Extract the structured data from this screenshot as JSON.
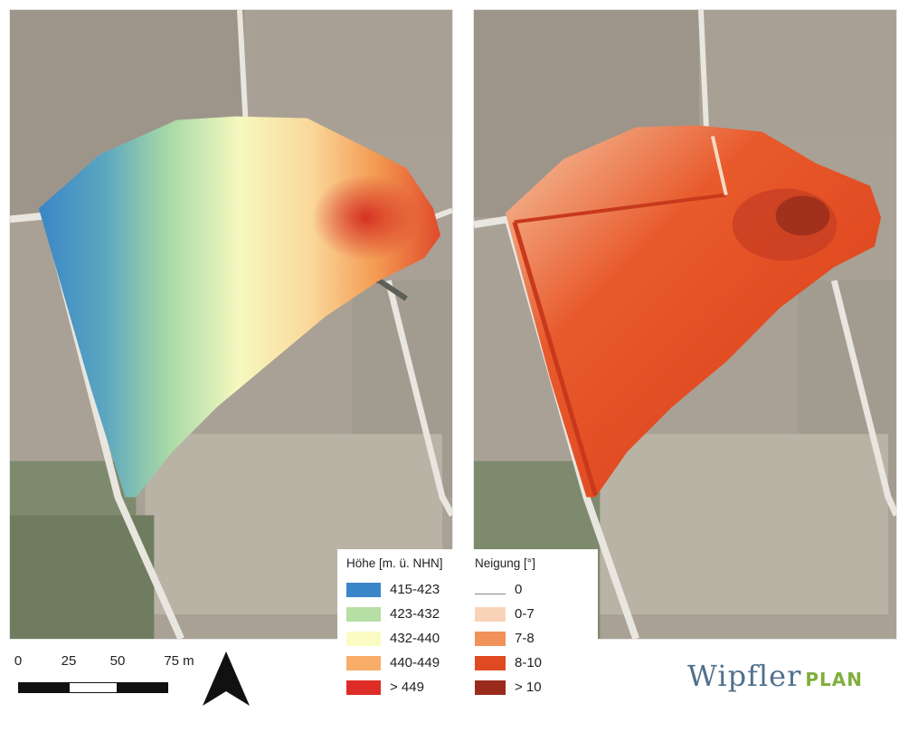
{
  "maps": {
    "left": {
      "layer": "height"
    },
    "right": {
      "layer": "slope"
    }
  },
  "legend": {
    "height_title": "Höhe [m. ü. NHN]",
    "height_items": [
      {
        "label": "415-423",
        "color": "#3a86c8"
      },
      {
        "label": "423-432",
        "color": "#b6dfa5"
      },
      {
        "label": "432-440",
        "color": "#fbfbc4"
      },
      {
        "label": "440-449",
        "color": "#f8ad68"
      },
      {
        "label": "> 449",
        "color": "#de2d26"
      }
    ],
    "slope_title": "Neigung [°]",
    "slope_items": [
      {
        "label": "0",
        "color": "#888888"
      },
      {
        "label": "0-7",
        "color": "#f9d3b7"
      },
      {
        "label": "7-8",
        "color": "#f0925a"
      },
      {
        "label": "8-10",
        "color": "#e04a22"
      },
      {
        "label": "> 10",
        "color": "#9a2a1c"
      }
    ]
  },
  "scalebar": {
    "labels": [
      "0",
      "25",
      "50",
      "75 m"
    ]
  },
  "north_arrow": {
    "icon": "north-arrow-icon"
  },
  "logo": {
    "main": "Wipfler",
    "sub": "PLAN",
    "main_color": "#51708c",
    "sub_color": "#7fae3e"
  }
}
